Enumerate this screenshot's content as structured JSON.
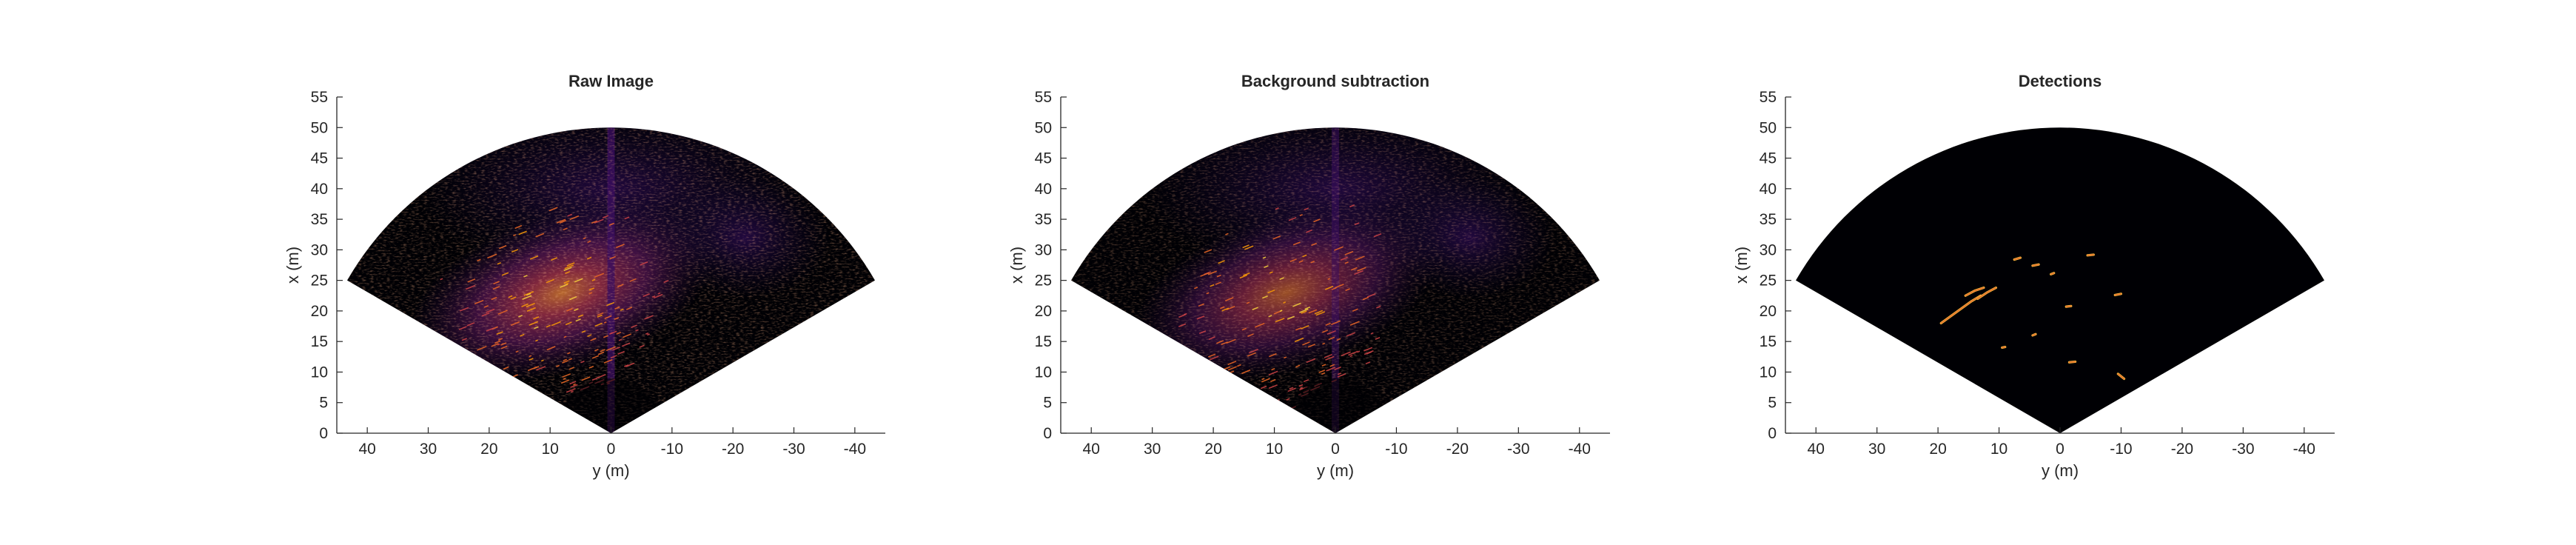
{
  "figure": {
    "background": "#ffffff",
    "axis_color": "#262626",
    "wedge_color": "#000004",
    "colormap": [
      "#000004",
      "#1b0c41",
      "#4a0c6b",
      "#781c6d",
      "#a52c60",
      "#cf4446",
      "#ed6925",
      "#fb9b06",
      "#f7d13d",
      "#fcffa4"
    ]
  },
  "chart_data": [
    {
      "type": "heatmap",
      "title": "Raw Image",
      "xlabel": "y (m)",
      "ylabel": "x (m)",
      "xlim": [
        45,
        -45
      ],
      "ylim": [
        0,
        55
      ],
      "xticks": [
        40,
        30,
        20,
        10,
        0,
        -10,
        -20,
        -30,
        -40
      ],
      "xtick_labels": [
        "40",
        "30",
        "20",
        "10",
        "0",
        "-10",
        "-20",
        "-30",
        "-40"
      ],
      "yticks": [
        0,
        5,
        10,
        15,
        20,
        25,
        30,
        35,
        40,
        45,
        50,
        55
      ],
      "ytick_labels": [
        "0",
        "5",
        "10",
        "15",
        "20",
        "25",
        "30",
        "35",
        "40",
        "45",
        "50",
        "55"
      ],
      "sector": {
        "range_max_m": 50,
        "half_angle_deg": 60
      },
      "image": "raw",
      "grid": false,
      "colormap": "inferno"
    },
    {
      "type": "heatmap",
      "title": "Background subtraction",
      "xlabel": "y (m)",
      "ylabel": "x (m)",
      "xlim": [
        45,
        -45
      ],
      "ylim": [
        0,
        55
      ],
      "xticks": [
        40,
        30,
        20,
        10,
        0,
        -10,
        -20,
        -30,
        -40
      ],
      "xtick_labels": [
        "40",
        "30",
        "20",
        "10",
        "0",
        "-10",
        "-20",
        "-30",
        "-40"
      ],
      "yticks": [
        0,
        5,
        10,
        15,
        20,
        25,
        30,
        35,
        40,
        45,
        50,
        55
      ],
      "ytick_labels": [
        "0",
        "5",
        "10",
        "15",
        "20",
        "25",
        "30",
        "35",
        "40",
        "45",
        "50",
        "55"
      ],
      "sector": {
        "range_max_m": 50,
        "half_angle_deg": 60
      },
      "image": "background_subtracted",
      "grid": false,
      "colormap": "inferno"
    },
    {
      "type": "heatmap",
      "title": "Detections",
      "xlabel": "y (m)",
      "ylabel": "x (m)",
      "xlim": [
        45,
        -45
      ],
      "ylim": [
        0,
        55
      ],
      "xticks": [
        40,
        30,
        20,
        10,
        0,
        -10,
        -20,
        -30,
        -40
      ],
      "xtick_labels": [
        "40",
        "30",
        "20",
        "10",
        "0",
        "-10",
        "-20",
        "-30",
        "-40"
      ],
      "yticks": [
        0,
        5,
        10,
        15,
        20,
        25,
        30,
        35,
        40,
        45,
        50,
        55
      ],
      "ytick_labels": [
        "0",
        "5",
        "10",
        "15",
        "20",
        "25",
        "30",
        "35",
        "40",
        "45",
        "50",
        "55"
      ],
      "sector": {
        "range_max_m": 50,
        "half_angle_deg": 60
      },
      "image": "detections",
      "grid": false,
      "colormap": "inferno",
      "detections": [
        {
          "y": [
            19.5,
            17.0,
            14.5,
            13.0
          ],
          "x": [
            18.0,
            19.8,
            21.6,
            22.5
          ]
        },
        {
          "y": [
            13.5,
            12.0,
            10.5
          ],
          "x": [
            22.0,
            23.0,
            23.8
          ]
        },
        {
          "y": [
            15.5,
            14.0,
            12.5
          ],
          "x": [
            22.5,
            23.3,
            23.8
          ]
        },
        {
          "y": [
            7.5,
            6.5
          ],
          "x": [
            28.4,
            28.7
          ]
        },
        {
          "y": [
            4.5,
            3.5
          ],
          "x": [
            27.4,
            27.6
          ]
        },
        {
          "y": [
            -4.5,
            -5.5
          ],
          "x": [
            29.1,
            29.2
          ]
        },
        {
          "y": [
            1.5,
            1.0
          ],
          "x": [
            26.0,
            26.2
          ]
        },
        {
          "y": [
            -9.0,
            -10.0
          ],
          "x": [
            22.6,
            22.8
          ]
        },
        {
          "y": [
            -9.5,
            -10.5
          ],
          "x": [
            9.7,
            8.9
          ]
        },
        {
          "y": [
            9.5,
            9.0
          ],
          "x": [
            14.0,
            14.1
          ]
        },
        {
          "y": [
            4.5,
            4.0
          ],
          "x": [
            16.0,
            16.2
          ]
        },
        {
          "y": [
            -1.5,
            -2.5
          ],
          "x": [
            11.6,
            11.7
          ]
        },
        {
          "y": [
            -1.0,
            -1.8
          ],
          "x": [
            20.7,
            20.8
          ]
        }
      ]
    }
  ]
}
